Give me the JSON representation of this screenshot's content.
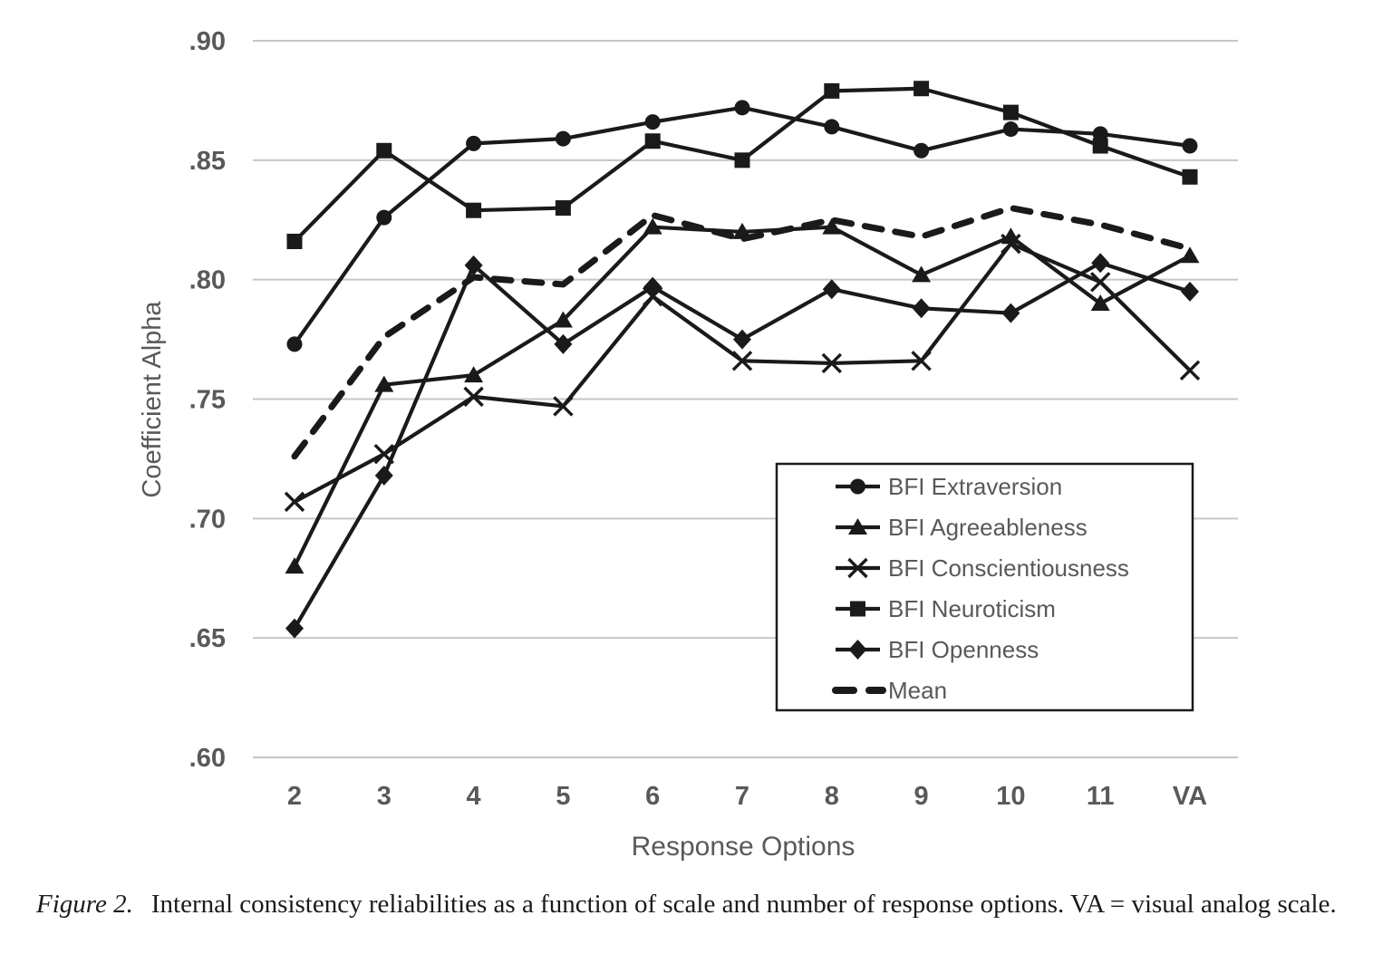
{
  "caption": {
    "figure_label": "Figure 2.",
    "text": "Internal consistency reliabilities as a function of scale and number of response options. VA = visual analog scale."
  },
  "chart_data": {
    "type": "line",
    "title": "",
    "xlabel": "Response Options",
    "ylabel": "Coefficient Alpha",
    "categories": [
      "2",
      "3",
      "4",
      "5",
      "6",
      "7",
      "8",
      "9",
      "10",
      "11",
      "VA"
    ],
    "ylim": [
      0.6,
      0.9
    ],
    "yticks": [
      {
        "label": ".60",
        "value": 0.6
      },
      {
        "label": ".65",
        "value": 0.65
      },
      {
        "label": ".70",
        "value": 0.7
      },
      {
        "label": ".75",
        "value": 0.75
      },
      {
        "label": ".80",
        "value": 0.8
      },
      {
        "label": ".85",
        "value": 0.85
      },
      {
        "label": ".90",
        "value": 0.9
      }
    ],
    "grid": "horizontal",
    "legend_position": "inside-right",
    "series": [
      {
        "name": "BFI Extraversion",
        "marker": "circle",
        "line": "solid",
        "values": [
          0.773,
          0.826,
          0.857,
          0.859,
          0.866,
          0.872,
          0.864,
          0.854,
          0.863,
          0.861,
          0.856
        ]
      },
      {
        "name": "BFI Agreeableness",
        "marker": "triangle",
        "line": "solid",
        "values": [
          0.68,
          0.756,
          0.76,
          0.783,
          0.822,
          0.82,
          0.822,
          0.802,
          0.818,
          0.79,
          0.81
        ]
      },
      {
        "name": "BFI Conscientiousness",
        "marker": "x",
        "line": "solid",
        "values": [
          0.707,
          0.727,
          0.751,
          0.747,
          0.793,
          0.766,
          0.765,
          0.766,
          0.815,
          0.799,
          0.762
        ]
      },
      {
        "name": "BFI Neuroticism",
        "marker": "square",
        "line": "solid",
        "values": [
          0.816,
          0.854,
          0.829,
          0.83,
          0.858,
          0.85,
          0.879,
          0.88,
          0.87,
          0.856,
          0.843
        ]
      },
      {
        "name": "BFI Openness",
        "marker": "diamond",
        "line": "solid",
        "values": [
          0.654,
          0.718,
          0.806,
          0.773,
          0.797,
          0.775,
          0.796,
          0.788,
          0.786,
          0.807,
          0.795
        ]
      },
      {
        "name": "Mean",
        "marker": "none",
        "line": "dashed",
        "values": [
          0.726,
          0.776,
          0.801,
          0.798,
          0.827,
          0.817,
          0.825,
          0.818,
          0.83,
          0.823,
          0.813
        ]
      }
    ],
    "colors": {
      "series": "#1a1a1a",
      "axis_text": "#595959",
      "gridline": "#c6c6c6",
      "legend_border": "#1a1a1a",
      "background": "#ffffff"
    }
  }
}
